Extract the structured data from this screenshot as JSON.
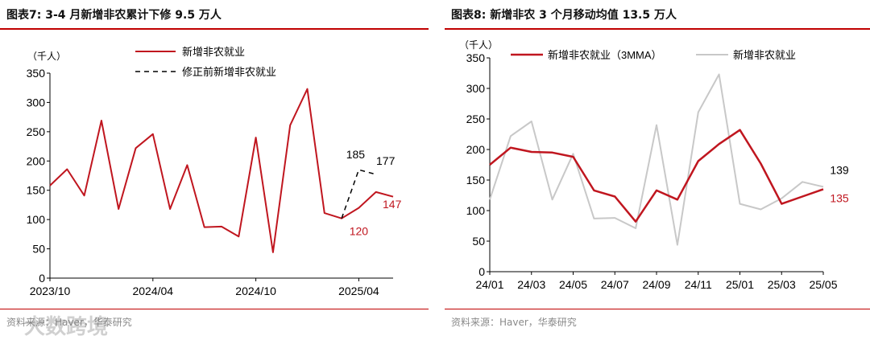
{
  "colors": {
    "accent": "#c00000",
    "series_red": "#c0161f",
    "series_grey": "#c8c8c8",
    "dashed": "#000000"
  },
  "left": {
    "title": "图表7:  3-4 月新增非农累计下修 9.5 万人",
    "source": "资料来源：Haver，华泰研究",
    "chart_data": {
      "type": "line",
      "ylabel": "（千人）",
      "ylim": [
        0,
        350
      ],
      "yticks": [
        0,
        50,
        100,
        150,
        200,
        250,
        300,
        350
      ],
      "xticks": [
        {
          "index": 0,
          "label": "2023/10"
        },
        {
          "index": 6,
          "label": "2024/04"
        },
        {
          "index": 12,
          "label": "2024/10"
        },
        {
          "index": 18,
          "label": "2025/04"
        }
      ],
      "series": [
        {
          "name": "新增非农就业",
          "style": "solid",
          "values": [
            158,
            186,
            141,
            269,
            118,
            222,
            246,
            118,
            193,
            87,
            88,
            71,
            240,
            44,
            261,
            323,
            111,
            102,
            120,
            147,
            139
          ]
        },
        {
          "name": "修正前新增非农就业",
          "style": "dashed",
          "values": [
            null,
            null,
            null,
            null,
            null,
            null,
            null,
            null,
            null,
            null,
            null,
            null,
            null,
            null,
            null,
            null,
            null,
            102,
            185,
            177,
            null
          ]
        }
      ],
      "annotations": [
        {
          "text": "185",
          "color": "#000000"
        },
        {
          "text": "177",
          "color": "#000000"
        },
        {
          "text": "120",
          "color": "#c0161f"
        },
        {
          "text": "147",
          "color": "#c0161f"
        }
      ]
    }
  },
  "right": {
    "title": "图表8:  新增非农 3 个月移动均值 13.5 万人",
    "source": "资料来源：Haver，华泰研究",
    "chart_data": {
      "type": "line",
      "ylabel": "（千人）",
      "ylim": [
        0,
        350
      ],
      "yticks": [
        0,
        50,
        100,
        150,
        200,
        250,
        300,
        350
      ],
      "xticks": [
        {
          "index": 0,
          "label": "24/01"
        },
        {
          "index": 2,
          "label": "24/03"
        },
        {
          "index": 4,
          "label": "24/05"
        },
        {
          "index": 6,
          "label": "24/07"
        },
        {
          "index": 8,
          "label": "24/09"
        },
        {
          "index": 10,
          "label": "24/11"
        },
        {
          "index": 12,
          "label": "25/01"
        },
        {
          "index": 14,
          "label": "25/03"
        },
        {
          "index": 16,
          "label": "25/05"
        }
      ],
      "series": [
        {
          "name": "新增非农就业（3MMA）",
          "style": "red",
          "values": [
            175,
            203,
            196,
            195,
            188,
            133,
            123,
            82,
            133,
            118,
            181,
            209,
            232,
            177,
            111,
            123,
            135
          ]
        },
        {
          "name": "新增非农就业",
          "style": "grey",
          "values": [
            118,
            222,
            246,
            118,
            193,
            87,
            88,
            71,
            240,
            44,
            261,
            323,
            111,
            102,
            120,
            147,
            139
          ]
        }
      ],
      "annotations": [
        {
          "text": "139",
          "color": "#000000"
        },
        {
          "text": "135",
          "color": "#c0161f"
        }
      ]
    }
  },
  "watermark": "大数跨境"
}
